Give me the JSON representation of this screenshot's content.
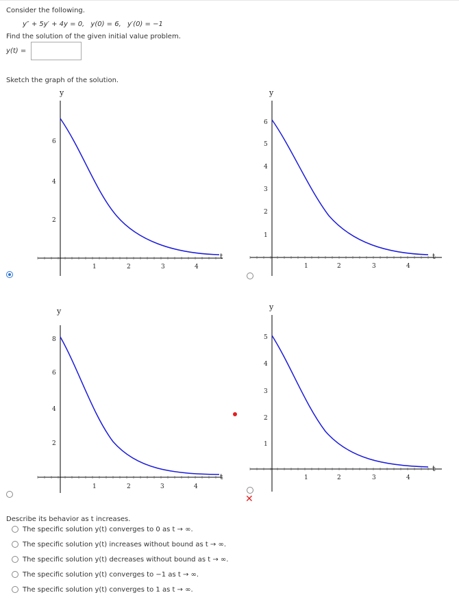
{
  "problem": {
    "intro": "Consider the following.",
    "equation": "y″ + 5y′ + 4y = 0,",
    "ic1": "y(0) = 6,",
    "ic2": "y′(0) = −1",
    "task": "Find the solution of the given initial value problem.",
    "answer_label": "y(t) =",
    "answer_value": ""
  },
  "sketch": {
    "prompt": "Sketch the graph of the solution.",
    "options": [
      {
        "selected": true,
        "y_ticks": [
          "2",
          "4",
          "6"
        ],
        "x_ticks": [
          "1",
          "2",
          "3",
          "4"
        ]
      },
      {
        "selected": false,
        "y_ticks": [
          "1",
          "2",
          "3",
          "4",
          "5",
          "6"
        ],
        "x_ticks": [
          "1",
          "2",
          "3",
          "4"
        ]
      },
      {
        "selected": false,
        "y_ticks": [
          "2",
          "4",
          "6",
          "8"
        ],
        "x_ticks": [
          "1",
          "2",
          "3",
          "4"
        ]
      },
      {
        "selected": false,
        "y_ticks": [
          "1",
          "2",
          "3",
          "4",
          "5"
        ],
        "x_ticks": [
          "1",
          "2",
          "3",
          "4"
        ]
      }
    ],
    "axis_y": "y",
    "axis_x": "t",
    "curve_color": "#1a1adb",
    "wrong_marker": "✕",
    "feedback_color": "#e02020"
  },
  "behavior": {
    "prompt": "Describe its behavior as t increases.",
    "options": [
      "The specific solution y(t) converges to 0 as t → ∞.",
      "The specific solution y(t) increases without bound as t → ∞.",
      "The specific solution y(t) decreases without bound as t → ∞.",
      "The specific solution y(t) converges to −1 as t → ∞.",
      "The specific solution y(t) converges to 1 as t → ∞."
    ]
  }
}
